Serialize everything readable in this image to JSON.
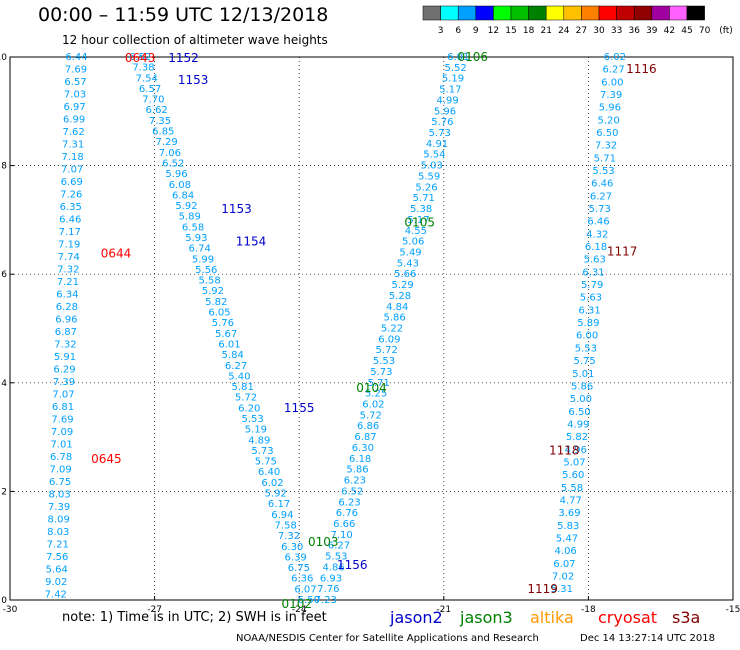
{
  "header": {
    "title": "00:00 – 11:59 UTC 12/13/2018",
    "subtitle": "12 hour collection of altimeter wave heights"
  },
  "colorbar": {
    "unit": "(ft)",
    "bins": [
      {
        "label": "3",
        "color": "#707070"
      },
      {
        "label": "6",
        "color": "#00ffff"
      },
      {
        "label": "9",
        "color": "#00a0ff"
      },
      {
        "label": "12",
        "color": "#0000ff"
      },
      {
        "label": "15",
        "color": "#00ff00"
      },
      {
        "label": "18",
        "color": "#00c000"
      },
      {
        "label": "21",
        "color": "#008000"
      },
      {
        "label": "24",
        "color": "#ffff00"
      },
      {
        "label": "27",
        "color": "#ffc000"
      },
      {
        "label": "30",
        "color": "#ff8000"
      },
      {
        "label": "33",
        "color": "#ff0000"
      },
      {
        "label": "36",
        "color": "#c00000"
      },
      {
        "label": "39",
        "color": "#900000"
      },
      {
        "label": "42",
        "color": "#a000a0"
      },
      {
        "label": "45",
        "color": "#ff60ff"
      },
      {
        "label": "70",
        "color": "#000000"
      }
    ]
  },
  "note": "note:  1) Time is in UTC;  2) SWH is in feet",
  "legend": [
    {
      "name": "jason2",
      "color": "#0000cc"
    },
    {
      "name": "jason3",
      "color": "#008000"
    },
    {
      "name": "altika",
      "color": "#ff9900"
    },
    {
      "name": "cryosat",
      "color": "#ff0000"
    },
    {
      "name": "s3a",
      "color": "#800000"
    }
  ],
  "footer": {
    "credit": "NOAA/NESDIS Center for Satellite Applications and Research",
    "date": "Dec 14 13:27:14 UTC 2018"
  },
  "chart_data": {
    "type": "scatter",
    "xlim": [
      -30,
      -15
    ],
    "ylim": [
      0,
      10
    ],
    "xticks": [
      -30,
      -27,
      -24,
      -21,
      -18,
      -15
    ],
    "yticks": [
      0,
      2,
      4,
      6,
      8,
      10
    ],
    "grid": true,
    "value_color": "#00a0ff",
    "tracks": [
      {
        "x0": -28.62,
        "x1": -29.05,
        "y0": 10.0,
        "y1": 0.1,
        "values": [
          "6.44",
          "7.69",
          "6.57",
          "7.03",
          "6.97",
          "6.99",
          "7.62",
          "7.31",
          "7.18",
          "7.07",
          "6.69",
          "7.26",
          "6.35",
          "6.46",
          "7.17",
          "7.19",
          "7.74",
          "7.32",
          "7.21",
          "6.34",
          "6.28",
          "6.96",
          "6.87",
          "7.32",
          "5.91",
          "6.29",
          "7.39",
          "7.07",
          "6.81",
          "7.69",
          "7.09",
          "7.01",
          "6.78",
          "7.09",
          "6.75",
          "8.03",
          "7.39",
          "8.09",
          "8.03",
          "7.21",
          "7.56",
          "5.64",
          "9.02",
          "7.42"
        ]
      },
      {
        "x0": -27.3,
        "x1": -23.8,
        "y0": 10.0,
        "y1": 0.0,
        "values": [
          "6.52",
          "7.38",
          "7.54",
          "6.57",
          "7.70",
          "6.62",
          "7.35",
          "6.85",
          "7.29",
          "7.06",
          "6.52",
          "5.96",
          "6.08",
          "6.84",
          "5.92",
          "5.89",
          "6.58",
          "5.93",
          "6.74",
          "5.99",
          "5.56",
          "5.58",
          "5.92",
          "5.82",
          "6.05",
          "5.76",
          "5.67",
          "6.01",
          "5.84",
          "6.27",
          "5.40",
          "5.81",
          "5.72",
          "6.20",
          "5.53",
          "5.19",
          "4.89",
          "5.73",
          "5.75",
          "6.40",
          "6.02",
          "5.92",
          "6.17",
          "6.94",
          "7.58",
          "7.32",
          "6.30",
          "6.39",
          "6.75",
          "6.36",
          "6.07",
          "6.50"
        ]
      },
      {
        "x0": -20.7,
        "x1": -23.45,
        "y0": 10.0,
        "y1": 0.0,
        "values": [
          "6.01",
          "5.52",
          "5.19",
          "5.17",
          "4.99",
          "5.96",
          "5.76",
          "5.73",
          "4.91",
          "5.54",
          "5.03",
          "5.59",
          "5.26",
          "5.71",
          "5.38",
          "5.17",
          "4.55",
          "5.06",
          "5.49",
          "5.43",
          "5.66",
          "5.29",
          "5.28",
          "4.84",
          "5.86",
          "5.22",
          "6.09",
          "5.72",
          "5.53",
          "5.73",
          "5.71",
          "5.25",
          "6.02",
          "5.72",
          "6.86",
          "6.87",
          "6.30",
          "6.18",
          "5.86",
          "6.23",
          "6.52",
          "6.23",
          "6.76",
          "6.66",
          "7.10",
          "6.27",
          "5.53",
          "4.86",
          "6.93",
          "7.76",
          "7.23"
        ]
      },
      {
        "x0": -17.45,
        "x1": -18.55,
        "y0": 10.0,
        "y1": 0.2,
        "values": [
          "6.02",
          "6.27",
          "6.00",
          "7.39",
          "5.96",
          "5.20",
          "6.50",
          "7.32",
          "5.71",
          "5.53",
          "6.46",
          "6.27",
          "5.73",
          "6.46",
          "4.32",
          "6.18",
          "5.63",
          "6.31",
          "5.79",
          "5.63",
          "6.31",
          "5.89",
          "6.00",
          "5.53",
          "5.75",
          "5.01",
          "5.86",
          "5.00",
          "6.50",
          "4.99",
          "5.82",
          "4.96",
          "5.07",
          "5.60",
          "5.58",
          "4.77",
          "3.69",
          "5.83",
          "5.47",
          "4.06",
          "6.07",
          "7.02",
          "5.31"
        ]
      }
    ],
    "time_labels": [
      {
        "text": "0643",
        "x": -27.3,
        "y": 9.98,
        "color": "#ff0000"
      },
      {
        "text": "0644",
        "x": -27.8,
        "y": 6.38,
        "color": "#ff0000"
      },
      {
        "text": "0645",
        "x": -28.0,
        "y": 2.6,
        "color": "#ff0000"
      },
      {
        "text": "1152",
        "x": -26.4,
        "y": 9.98,
        "color": "#0000cc"
      },
      {
        "text": "1153",
        "x": -26.2,
        "y": 9.58,
        "color": "#0000cc"
      },
      {
        "text": "1153",
        "x": -25.3,
        "y": 7.2,
        "color": "#0000cc"
      },
      {
        "text": "1154",
        "x": -25.0,
        "y": 6.6,
        "color": "#0000cc"
      },
      {
        "text": "1155",
        "x": -24.0,
        "y": 3.54,
        "color": "#0000cc"
      },
      {
        "text": "1156",
        "x": -22.9,
        "y": 0.64,
        "color": "#0000cc"
      },
      {
        "text": "0106",
        "x": -20.4,
        "y": 10.0,
        "color": "#008000"
      },
      {
        "text": "0105",
        "x": -21.5,
        "y": 6.95,
        "color": "#008000"
      },
      {
        "text": "0104",
        "x": -22.5,
        "y": 3.9,
        "color": "#008000"
      },
      {
        "text": "0103",
        "x": -23.5,
        "y": 1.07,
        "color": "#008000"
      },
      {
        "text": "0102",
        "x": -24.05,
        "y": -0.07,
        "color": "#008000"
      },
      {
        "text": "1116",
        "x": -16.9,
        "y": 9.78,
        "color": "#800000"
      },
      {
        "text": "1117",
        "x": -17.3,
        "y": 6.42,
        "color": "#800000"
      },
      {
        "text": "1118",
        "x": -18.5,
        "y": 2.75,
        "color": "#800000"
      },
      {
        "text": "1119",
        "x": -18.95,
        "y": 0.2,
        "color": "#800000"
      }
    ]
  }
}
